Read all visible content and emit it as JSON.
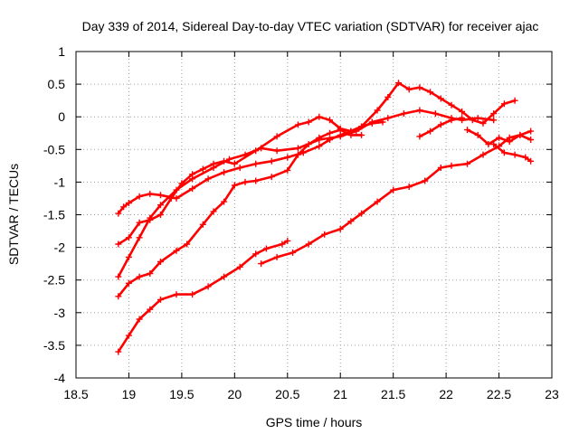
{
  "chart_data": {
    "type": "scatter",
    "title": "Day 339 of 2014, Sidereal Day-to-day VTEC variation (SDTVAR) for receiver ajac",
    "xlabel": "GPS time / hours",
    "ylabel": "SDTVAR / TECUs",
    "xlim": [
      18.5,
      23
    ],
    "ylim": [
      -4,
      1
    ],
    "xticks": [
      "18.5",
      "19",
      "19.5",
      "20",
      "20.5",
      "21",
      "21.5",
      "22",
      "22.5",
      "23"
    ],
    "yticks": [
      "-4",
      "-3.5",
      "-3",
      "-2.5",
      "-2",
      "-1.5",
      "-1",
      "-0.5",
      "0",
      "0.5",
      "1"
    ],
    "grid": true,
    "marker": "plus",
    "color": "#ff0000",
    "series": [
      {
        "points": [
          [
            18.9,
            -1.48
          ],
          [
            18.95,
            -1.38
          ],
          [
            19.0,
            -1.32
          ],
          [
            19.1,
            -1.22
          ],
          [
            19.2,
            -1.18
          ],
          [
            19.3,
            -1.2
          ],
          [
            19.45,
            -1.25
          ],
          [
            19.6,
            -1.1
          ],
          [
            19.75,
            -0.95
          ],
          [
            19.9,
            -0.85
          ],
          [
            20.05,
            -0.78
          ],
          [
            20.2,
            -0.72
          ],
          [
            20.35,
            -0.68
          ],
          [
            20.5,
            -0.62
          ],
          [
            20.65,
            -0.55
          ],
          [
            20.8,
            -0.45
          ],
          [
            20.9,
            -0.35
          ],
          [
            21.0,
            -0.28
          ],
          [
            21.1,
            -0.22
          ],
          [
            21.2,
            -0.15
          ],
          [
            21.3,
            -0.1
          ],
          [
            21.4,
            -0.08
          ]
        ]
      },
      {
        "points": [
          [
            18.9,
            -1.95
          ],
          [
            19.0,
            -1.85
          ],
          [
            19.1,
            -1.62
          ],
          [
            19.2,
            -1.58
          ],
          [
            19.3,
            -1.5
          ],
          [
            19.4,
            -1.25
          ],
          [
            19.5,
            -1.02
          ],
          [
            19.6,
            -0.88
          ],
          [
            19.7,
            -0.8
          ],
          [
            19.8,
            -0.72
          ],
          [
            19.9,
            -0.68
          ],
          [
            20.0,
            -0.72
          ],
          [
            20.2,
            -0.52
          ],
          [
            20.4,
            -0.3
          ],
          [
            20.6,
            -0.12
          ],
          [
            20.7,
            -0.08
          ],
          [
            20.8,
            0.0
          ],
          [
            20.9,
            -0.05
          ],
          [
            21.0,
            -0.18
          ],
          [
            21.1,
            -0.22
          ],
          [
            21.2,
            -0.15
          ],
          [
            21.35,
            0.1
          ],
          [
            21.45,
            0.3
          ],
          [
            21.55,
            0.52
          ],
          [
            21.65,
            0.42
          ],
          [
            21.75,
            0.45
          ],
          [
            21.85,
            0.38
          ],
          [
            21.95,
            0.28
          ],
          [
            22.05,
            0.18
          ],
          [
            22.15,
            0.08
          ],
          [
            22.25,
            -0.05
          ],
          [
            22.35,
            -0.1
          ],
          [
            22.45,
            0.05
          ],
          [
            22.55,
            0.2
          ],
          [
            22.65,
            0.25
          ]
        ]
      },
      {
        "points": [
          [
            18.9,
            -2.45
          ],
          [
            19.0,
            -2.15
          ],
          [
            19.1,
            -1.85
          ],
          [
            19.2,
            -1.55
          ],
          [
            19.3,
            -1.35
          ],
          [
            19.45,
            -1.12
          ],
          [
            19.6,
            -0.95
          ],
          [
            19.8,
            -0.78
          ],
          [
            19.95,
            -0.65
          ],
          [
            20.1,
            -0.58
          ],
          [
            20.25,
            -0.48
          ],
          [
            20.4,
            -0.52
          ],
          [
            20.6,
            -0.48
          ],
          [
            20.8,
            -0.35
          ],
          [
            21.0,
            -0.3
          ],
          [
            21.15,
            -0.22
          ],
          [
            21.3,
            -0.08
          ],
          [
            21.45,
            -0.02
          ],
          [
            21.6,
            0.05
          ],
          [
            21.75,
            0.1
          ],
          [
            21.9,
            0.05
          ],
          [
            22.05,
            -0.02
          ],
          [
            22.15,
            -0.05
          ],
          [
            22.3,
            -0.02
          ],
          [
            22.45,
            -0.05
          ]
        ]
      },
      {
        "points": [
          [
            18.9,
            -2.75
          ],
          [
            19.0,
            -2.55
          ],
          [
            19.1,
            -2.45
          ],
          [
            19.2,
            -2.4
          ],
          [
            19.3,
            -2.22
          ],
          [
            19.45,
            -2.05
          ],
          [
            19.55,
            -1.95
          ],
          [
            19.7,
            -1.65
          ],
          [
            19.8,
            -1.45
          ],
          [
            19.9,
            -1.3
          ],
          [
            20.0,
            -1.05
          ],
          [
            20.1,
            -1.0
          ],
          [
            20.2,
            -0.98
          ],
          [
            20.35,
            -0.92
          ],
          [
            20.5,
            -0.82
          ],
          [
            20.6,
            -0.58
          ],
          [
            20.7,
            -0.42
          ],
          [
            20.8,
            -0.32
          ],
          [
            20.9,
            -0.25
          ],
          [
            21.0,
            -0.2
          ],
          [
            21.1,
            -0.28
          ],
          [
            21.2,
            -0.28
          ]
        ]
      },
      {
        "points": [
          [
            18.9,
            -3.6
          ],
          [
            19.0,
            -3.35
          ],
          [
            19.1,
            -3.1
          ],
          [
            19.2,
            -2.95
          ],
          [
            19.3,
            -2.8
          ],
          [
            19.45,
            -2.72
          ],
          [
            19.6,
            -2.72
          ],
          [
            19.75,
            -2.6
          ],
          [
            19.9,
            -2.45
          ],
          [
            20.05,
            -2.3
          ],
          [
            20.2,
            -2.1
          ],
          [
            20.3,
            -2.02
          ],
          [
            20.45,
            -1.95
          ],
          [
            20.5,
            -1.9
          ]
        ]
      },
      {
        "points": [
          [
            20.25,
            -2.25
          ],
          [
            20.4,
            -2.15
          ],
          [
            20.55,
            -2.08
          ],
          [
            20.7,
            -1.95
          ],
          [
            20.85,
            -1.8
          ],
          [
            21.0,
            -1.72
          ],
          [
            21.1,
            -1.6
          ],
          [
            21.2,
            -1.48
          ],
          [
            21.35,
            -1.3
          ],
          [
            21.5,
            -1.12
          ],
          [
            21.65,
            -1.07
          ],
          [
            21.8,
            -0.98
          ],
          [
            21.95,
            -0.78
          ],
          [
            22.05,
            -0.75
          ],
          [
            22.2,
            -0.72
          ],
          [
            22.35,
            -0.58
          ],
          [
            22.5,
            -0.45
          ],
          [
            22.6,
            -0.32
          ],
          [
            22.7,
            -0.28
          ],
          [
            22.8,
            -0.35
          ]
        ]
      },
      {
        "points": [
          [
            21.75,
            -0.3
          ],
          [
            21.85,
            -0.22
          ],
          [
            21.95,
            -0.12
          ],
          [
            22.05,
            -0.05
          ],
          [
            22.15,
            -0.02
          ]
        ]
      },
      {
        "points": [
          [
            22.2,
            -0.2
          ],
          [
            22.3,
            -0.28
          ],
          [
            22.4,
            -0.42
          ],
          [
            22.5,
            -0.32
          ],
          [
            22.6,
            -0.38
          ],
          [
            22.7,
            -0.28
          ],
          [
            22.8,
            -0.22
          ]
        ]
      },
      {
        "points": [
          [
            22.45,
            -0.42
          ],
          [
            22.55,
            -0.55
          ],
          [
            22.65,
            -0.58
          ],
          [
            22.75,
            -0.62
          ],
          [
            22.8,
            -0.68
          ]
        ]
      }
    ]
  }
}
